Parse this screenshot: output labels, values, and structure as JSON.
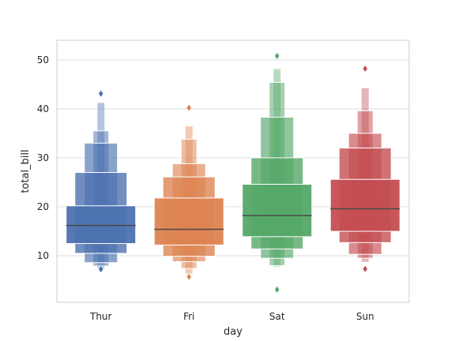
{
  "chart_data": {
    "type": "boxen",
    "title": "",
    "xlabel": "day",
    "ylabel": "total_bill",
    "categories": [
      "Thur",
      "Fri",
      "Sat",
      "Sun"
    ],
    "colors": [
      "#4c72b0",
      "#dd8452",
      "#55a868",
      "#c44e52"
    ],
    "ylim": [
      0.5,
      54
    ],
    "yticks": [
      10,
      20,
      30,
      40,
      50
    ],
    "grid": "horizontal",
    "legend": "none",
    "series": [
      {
        "category": "Thur",
        "median": 16.2,
        "boxes": [
          [
            12.5,
            20.2
          ],
          [
            10.5,
            27.0
          ],
          [
            8.6,
            33.0
          ],
          [
            7.9,
            35.5
          ],
          [
            7.4,
            41.3
          ]
        ],
        "outliers": [
          43.1,
          7.25
        ]
      },
      {
        "category": "Fri",
        "median": 15.4,
        "boxes": [
          [
            12.2,
            21.8
          ],
          [
            9.9,
            26.1
          ],
          [
            8.8,
            28.8
          ],
          [
            7.4,
            33.8
          ],
          [
            6.3,
            36.5
          ]
        ],
        "outliers": [
          40.2,
          5.7
        ]
      },
      {
        "category": "Sat",
        "median": 18.2,
        "boxes": [
          [
            13.9,
            24.6
          ],
          [
            11.4,
            30.0
          ],
          [
            9.5,
            38.3
          ],
          [
            8.0,
            45.4
          ],
          [
            7.7,
            48.2
          ]
        ],
        "outliers": [
          50.8,
          3.1
        ]
      },
      {
        "category": "Sun",
        "median": 19.6,
        "boxes": [
          [
            15.0,
            25.6
          ],
          [
            12.7,
            32.0
          ],
          [
            10.3,
            35.0
          ],
          [
            9.5,
            39.6
          ],
          [
            8.7,
            44.3
          ]
        ],
        "outliers": [
          48.2,
          7.3
        ]
      }
    ]
  }
}
